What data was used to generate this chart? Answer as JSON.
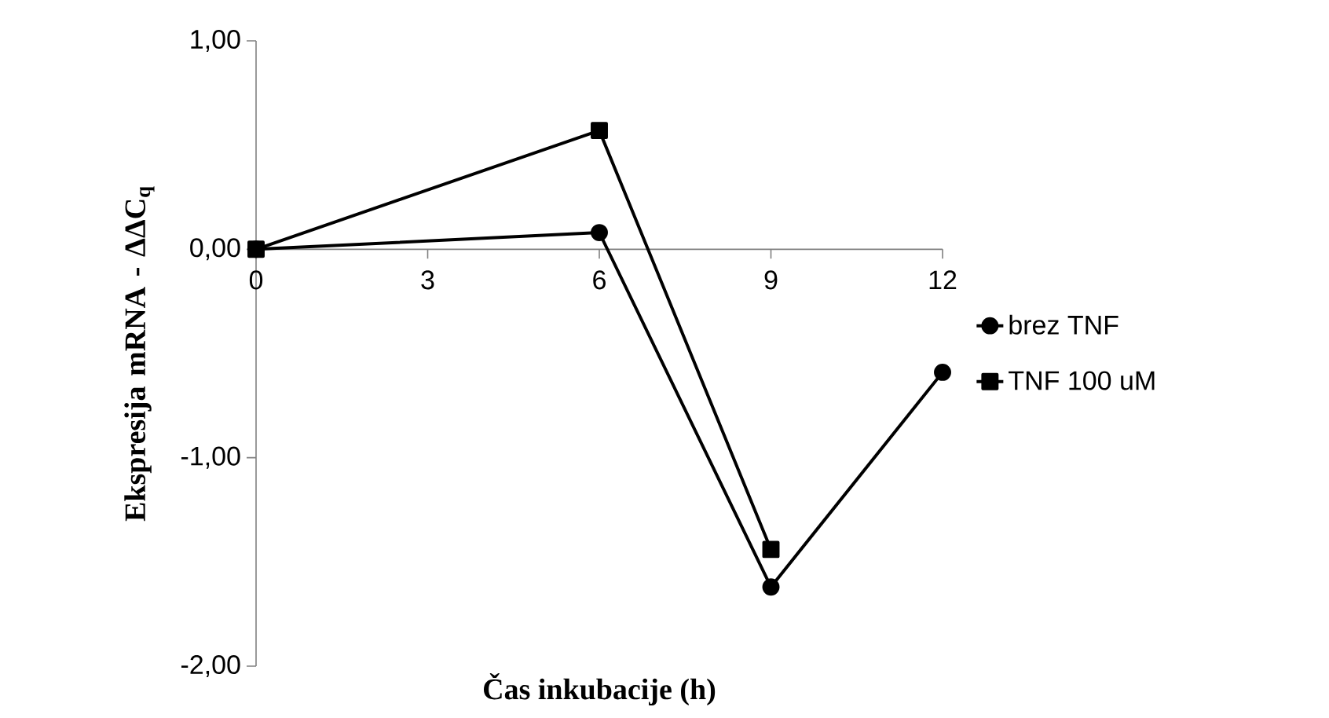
{
  "chart_data": {
    "type": "line",
    "xlabel": "Čas inkubacije (h)",
    "ylabel": "Ekspresija mRNA - ΔΔC$_{q}$",
    "x": [
      0,
      6,
      9,
      12
    ],
    "series": [
      {
        "name": "brez TNF",
        "color": "#000000",
        "marker": "circle",
        "values": [
          0.0,
          0.08,
          -1.62,
          -0.59
        ]
      },
      {
        "name": "TNF 100 uM",
        "color": "#000000",
        "marker": "square",
        "x": [
          0,
          6,
          9
        ],
        "values": [
          0.0,
          0.57,
          -1.44
        ]
      }
    ],
    "xlim": [
      0,
      12
    ],
    "xticks": [
      0,
      3,
      6,
      9,
      12
    ],
    "ylim": [
      -2,
      1
    ],
    "yticks": [
      {
        "value": -2,
        "label": "-2,00"
      },
      {
        "value": -1,
        "label": "-1,00"
      },
      {
        "value": 0,
        "label": "0,00"
      },
      {
        "value": 1,
        "label": "1,00"
      }
    ],
    "legend": "right",
    "line_style": "solid"
  }
}
